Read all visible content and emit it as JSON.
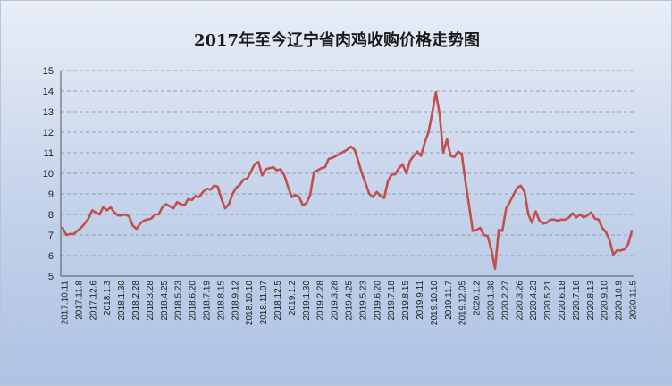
{
  "chart_data": {
    "type": "line",
    "title": "2017年至今辽宁省肉鸡收购价格走势图",
    "xlabel": "",
    "ylabel": "",
    "ylim": [
      5,
      15
    ],
    "yticks": [
      5,
      6,
      7,
      8,
      9,
      10,
      11,
      12,
      13,
      14,
      15
    ],
    "grid": true,
    "legend": "none",
    "colors": {
      "line": "#c0504d",
      "grid": "#7f8fa8",
      "background_top": "#e9eef7",
      "background_bottom": "#aec2e3"
    },
    "x_tick_labels": [
      "2017.10.11",
      "2017.11.8",
      "2017.12.6",
      "2018.1.3",
      "2018.1.30",
      "2018.2.28",
      "2018.3.28",
      "2018.4.25",
      "2018.5.23",
      "2018.6.20",
      "2018.7.19",
      "2018.8.15",
      "2018.9.12",
      "2018.10.10",
      "2018.11.07",
      "2018.12.5",
      "2019.1.2",
      "2019.1.30",
      "2019.2.28",
      "2019.3.28",
      "2019.4.25",
      "2019.5.23",
      "2019.6.20",
      "2019.7.18",
      "2019.8.15",
      "2019.9.11",
      "2019.10.10",
      "2019.11.7",
      "2019.12.05",
      "2020.1.2",
      "2020.1.30",
      "2020.2.27",
      "2020.3.26",
      "2020.4.23",
      "2020.5.21",
      "2020.6.18",
      "2020.7.16",
      "2020.8.13",
      "2020.9.10",
      "2020.10.9",
      "2020.11.5"
    ],
    "series": [
      {
        "values": [
          7.35,
          7.0,
          7.05,
          7.05,
          7.2,
          7.35,
          7.55,
          7.8,
          8.2,
          8.1,
          8.0,
          8.35,
          8.2,
          8.35,
          8.1,
          7.95,
          7.95,
          8.0,
          7.9,
          7.45,
          7.3,
          7.55,
          7.7,
          7.75,
          7.8,
          8.0,
          8.0,
          8.35,
          8.5,
          8.4,
          8.3,
          8.6,
          8.5,
          8.45,
          8.75,
          8.7,
          8.9,
          8.85,
          9.1,
          9.25,
          9.2,
          9.4,
          9.35,
          8.75,
          8.3,
          8.5,
          9.0,
          9.3,
          9.45,
          9.7,
          9.75,
          10.1,
          10.45,
          10.55,
          9.9,
          10.2,
          10.25,
          10.3,
          10.15,
          10.2,
          9.9,
          9.35,
          8.85,
          8.95,
          8.85,
          8.45,
          8.55,
          8.95,
          10.05,
          10.15,
          10.25,
          10.3,
          10.7,
          10.75,
          10.85,
          10.95,
          11.05,
          11.15,
          11.3,
          11.15,
          10.6,
          10.0,
          9.5,
          9.0,
          8.85,
          9.1,
          8.9,
          8.8,
          9.6,
          9.95,
          9.95,
          10.25,
          10.45,
          10.0,
          10.6,
          10.85,
          11.05,
          10.85,
          11.5,
          12.0,
          12.9,
          13.95,
          12.9,
          11.0,
          11.65,
          10.85,
          10.8,
          11.05,
          10.95,
          9.6,
          8.4,
          7.2,
          7.25,
          7.35,
          7.0,
          6.95,
          6.3,
          5.35,
          7.25,
          7.2,
          8.3,
          8.6,
          8.95,
          9.3,
          9.4,
          9.1,
          8.0,
          7.6,
          8.15,
          7.7,
          7.55,
          7.6,
          7.75,
          7.75,
          7.7,
          7.75,
          7.75,
          7.85,
          8.05,
          7.85,
          8.0,
          7.85,
          7.95,
          8.1,
          7.8,
          7.75,
          7.35,
          7.15,
          6.75,
          6.05,
          6.25,
          6.25,
          6.3,
          6.55,
          7.2
        ]
      }
    ]
  }
}
